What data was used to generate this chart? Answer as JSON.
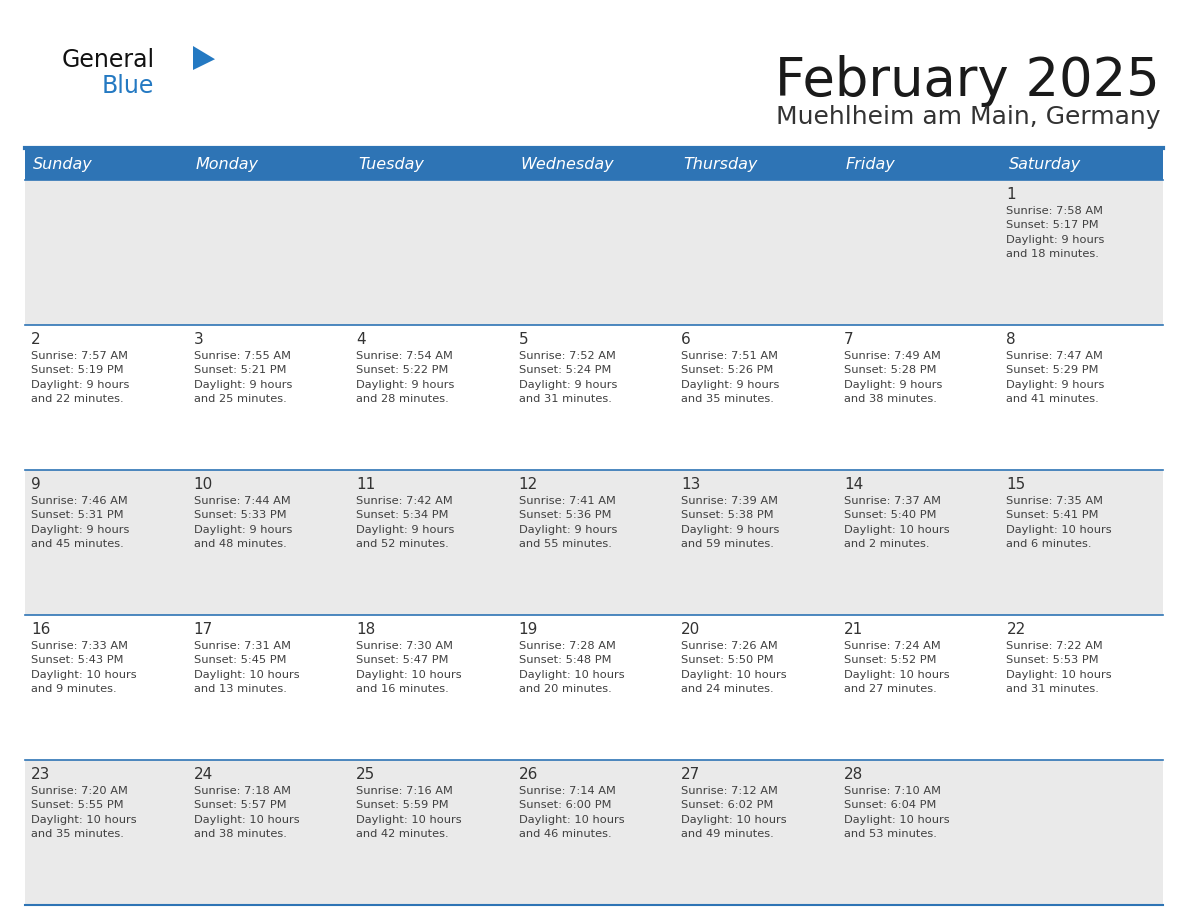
{
  "title": "February 2025",
  "subtitle": "Muehlheim am Main, Germany",
  "days_of_week": [
    "Sunday",
    "Monday",
    "Tuesday",
    "Wednesday",
    "Thursday",
    "Friday",
    "Saturday"
  ],
  "header_bg": "#2E74B5",
  "header_text": "#FFFFFF",
  "row_bg_light": "#EAEAEA",
  "row_bg_white": "#FFFFFF",
  "border_color": "#2E74B5",
  "day_number_color": "#333333",
  "cell_text_color": "#404040",
  "title_color": "#1a1a1a",
  "subtitle_color": "#333333",
  "logo_general_color": "#111111",
  "logo_blue_color": "#2479C2",
  "logo_triangle_color": "#2479C2",
  "calendar_data": [
    [
      {
        "day": null,
        "info": null
      },
      {
        "day": null,
        "info": null
      },
      {
        "day": null,
        "info": null
      },
      {
        "day": null,
        "info": null
      },
      {
        "day": null,
        "info": null
      },
      {
        "day": null,
        "info": null
      },
      {
        "day": "1",
        "info": "Sunrise: 7:58 AM\nSunset: 5:17 PM\nDaylight: 9 hours\nand 18 minutes."
      }
    ],
    [
      {
        "day": "2",
        "info": "Sunrise: 7:57 AM\nSunset: 5:19 PM\nDaylight: 9 hours\nand 22 minutes."
      },
      {
        "day": "3",
        "info": "Sunrise: 7:55 AM\nSunset: 5:21 PM\nDaylight: 9 hours\nand 25 minutes."
      },
      {
        "day": "4",
        "info": "Sunrise: 7:54 AM\nSunset: 5:22 PM\nDaylight: 9 hours\nand 28 minutes."
      },
      {
        "day": "5",
        "info": "Sunrise: 7:52 AM\nSunset: 5:24 PM\nDaylight: 9 hours\nand 31 minutes."
      },
      {
        "day": "6",
        "info": "Sunrise: 7:51 AM\nSunset: 5:26 PM\nDaylight: 9 hours\nand 35 minutes."
      },
      {
        "day": "7",
        "info": "Sunrise: 7:49 AM\nSunset: 5:28 PM\nDaylight: 9 hours\nand 38 minutes."
      },
      {
        "day": "8",
        "info": "Sunrise: 7:47 AM\nSunset: 5:29 PM\nDaylight: 9 hours\nand 41 minutes."
      }
    ],
    [
      {
        "day": "9",
        "info": "Sunrise: 7:46 AM\nSunset: 5:31 PM\nDaylight: 9 hours\nand 45 minutes."
      },
      {
        "day": "10",
        "info": "Sunrise: 7:44 AM\nSunset: 5:33 PM\nDaylight: 9 hours\nand 48 minutes."
      },
      {
        "day": "11",
        "info": "Sunrise: 7:42 AM\nSunset: 5:34 PM\nDaylight: 9 hours\nand 52 minutes."
      },
      {
        "day": "12",
        "info": "Sunrise: 7:41 AM\nSunset: 5:36 PM\nDaylight: 9 hours\nand 55 minutes."
      },
      {
        "day": "13",
        "info": "Sunrise: 7:39 AM\nSunset: 5:38 PM\nDaylight: 9 hours\nand 59 minutes."
      },
      {
        "day": "14",
        "info": "Sunrise: 7:37 AM\nSunset: 5:40 PM\nDaylight: 10 hours\nand 2 minutes."
      },
      {
        "day": "15",
        "info": "Sunrise: 7:35 AM\nSunset: 5:41 PM\nDaylight: 10 hours\nand 6 minutes."
      }
    ],
    [
      {
        "day": "16",
        "info": "Sunrise: 7:33 AM\nSunset: 5:43 PM\nDaylight: 10 hours\nand 9 minutes."
      },
      {
        "day": "17",
        "info": "Sunrise: 7:31 AM\nSunset: 5:45 PM\nDaylight: 10 hours\nand 13 minutes."
      },
      {
        "day": "18",
        "info": "Sunrise: 7:30 AM\nSunset: 5:47 PM\nDaylight: 10 hours\nand 16 minutes."
      },
      {
        "day": "19",
        "info": "Sunrise: 7:28 AM\nSunset: 5:48 PM\nDaylight: 10 hours\nand 20 minutes."
      },
      {
        "day": "20",
        "info": "Sunrise: 7:26 AM\nSunset: 5:50 PM\nDaylight: 10 hours\nand 24 minutes."
      },
      {
        "day": "21",
        "info": "Sunrise: 7:24 AM\nSunset: 5:52 PM\nDaylight: 10 hours\nand 27 minutes."
      },
      {
        "day": "22",
        "info": "Sunrise: 7:22 AM\nSunset: 5:53 PM\nDaylight: 10 hours\nand 31 minutes."
      }
    ],
    [
      {
        "day": "23",
        "info": "Sunrise: 7:20 AM\nSunset: 5:55 PM\nDaylight: 10 hours\nand 35 minutes."
      },
      {
        "day": "24",
        "info": "Sunrise: 7:18 AM\nSunset: 5:57 PM\nDaylight: 10 hours\nand 38 minutes."
      },
      {
        "day": "25",
        "info": "Sunrise: 7:16 AM\nSunset: 5:59 PM\nDaylight: 10 hours\nand 42 minutes."
      },
      {
        "day": "26",
        "info": "Sunrise: 7:14 AM\nSunset: 6:00 PM\nDaylight: 10 hours\nand 46 minutes."
      },
      {
        "day": "27",
        "info": "Sunrise: 7:12 AM\nSunset: 6:02 PM\nDaylight: 10 hours\nand 49 minutes."
      },
      {
        "day": "28",
        "info": "Sunrise: 7:10 AM\nSunset: 6:04 PM\nDaylight: 10 hours\nand 53 minutes."
      },
      {
        "day": null,
        "info": null
      }
    ]
  ]
}
